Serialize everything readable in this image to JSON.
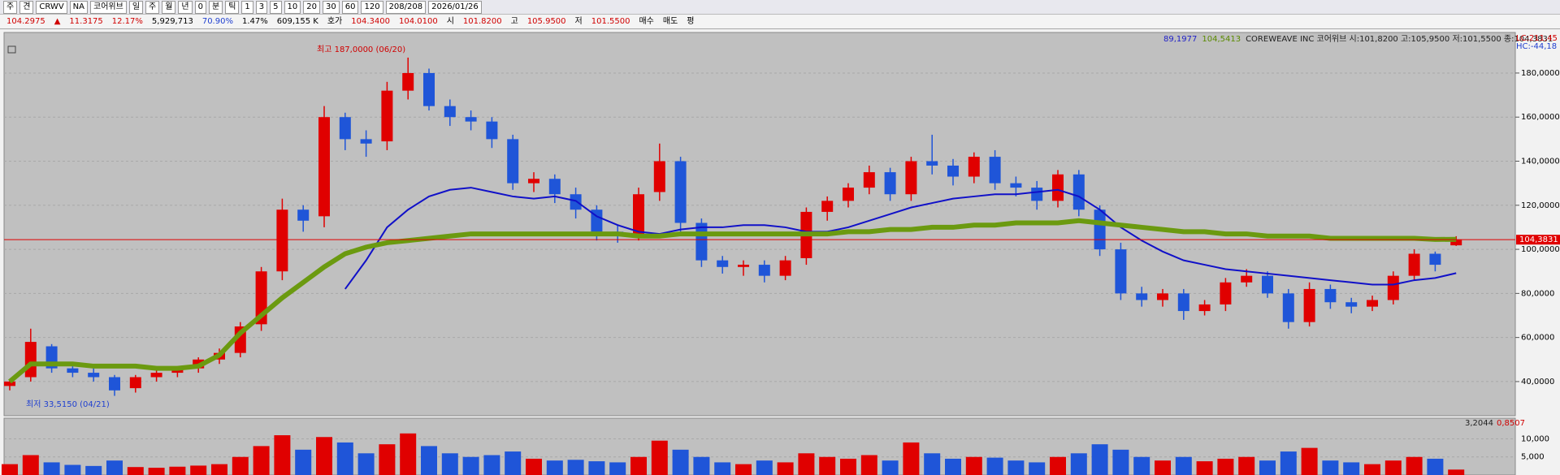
{
  "toolbar": {
    "row1": [
      {
        "text": "주"
      },
      {
        "text": "견"
      },
      {
        "text": "CRWV"
      },
      {
        "text": "NA"
      },
      {
        "text": "코어위브"
      },
      {
        "text": "일"
      },
      {
        "text": "주"
      },
      {
        "text": "월"
      },
      {
        "text": "년"
      },
      {
        "text": "0"
      },
      {
        "text": "분"
      },
      {
        "text": "틱"
      },
      {
        "text": "1"
      },
      {
        "text": "3"
      },
      {
        "text": "5"
      },
      {
        "text": "10"
      },
      {
        "text": "20"
      },
      {
        "text": "30"
      },
      {
        "text": "60"
      },
      {
        "text": "120"
      },
      {
        "text": "208/208"
      },
      {
        "text": "2026/01/26"
      }
    ],
    "row2": [
      {
        "text": "104.2975",
        "color": "#d00000"
      },
      {
        "text": "▲",
        "color": "#d00000"
      },
      {
        "text": "11.3175",
        "color": "#d00000"
      },
      {
        "text": "12.17%",
        "color": "#d00000"
      },
      {
        "text": "5,929,713",
        "color": "#000000"
      },
      {
        "text": "70.90%",
        "color": "#1f3fd0"
      },
      {
        "text": "1.47%",
        "color": "#000000"
      },
      {
        "text": "609,155 K",
        "color": "#000000"
      },
      {
        "text": "호가",
        "color": "#000000"
      },
      {
        "text": "104.3400",
        "color": "#d00000"
      },
      {
        "text": "104.0100",
        "color": "#d00000"
      },
      {
        "text": "시",
        "color": "#000000"
      },
      {
        "text": "101.8200",
        "color": "#d00000"
      },
      {
        "text": "고",
        "color": "#000000"
      },
      {
        "text": "105.9500",
        "color": "#d00000"
      },
      {
        "text": "저",
        "color": "#000000"
      },
      {
        "text": "101.5500",
        "color": "#d00000"
      },
      {
        "text": "매수",
        "color": "#000000"
      },
      {
        "text": "매도",
        "color": "#000000"
      },
      {
        "text": "평",
        "color": "#000000"
      }
    ]
  },
  "chart_data": [
    {
      "type": "candlestick",
      "legend": [
        {
          "text": "89,1977",
          "color": "#1f1fc8"
        },
        {
          "text": "104,5413",
          "color": "#5a8a00"
        },
        {
          "text": "COREWEAVE INC  코어위브  시:101,8200 고:105,9500 저:101,5500 종:104,3831",
          "color": "#222222"
        }
      ],
      "corner_labels": [
        {
          "text": "LC:211,45",
          "color": "#d00000"
        },
        {
          "text": "HC:-44,18",
          "color": "#1f3fd0"
        }
      ],
      "annotations": [
        {
          "text": "최고 187,0000 (06/20)",
          "color": "#d00000"
        },
        {
          "text": "최저 33,5150 (04/21)",
          "color": "#1f3fd0"
        }
      ],
      "colors": {
        "up": "#e00000",
        "down": "#1f55d8"
      },
      "open": [
        38,
        42,
        56,
        46,
        44,
        42,
        37,
        42,
        44,
        46,
        50,
        53,
        66,
        90,
        118,
        115,
        160,
        150,
        149,
        172,
        180,
        165,
        160,
        158,
        150,
        130,
        132,
        125,
        118,
        108,
        107,
        126,
        140,
        112,
        95,
        92,
        93,
        88,
        96,
        117,
        122,
        128,
        135,
        125,
        140,
        138,
        133,
        142,
        130,
        128,
        122,
        134,
        118,
        100,
        80,
        77,
        80,
        72,
        75,
        85,
        88,
        80,
        67,
        82,
        76,
        74,
        77,
        88,
        98,
        101.82
      ],
      "high": [
        41,
        64,
        57,
        48,
        46,
        43,
        43,
        45,
        47,
        51,
        55,
        67,
        92,
        123,
        120,
        165,
        162,
        154,
        176,
        187,
        182,
        168,
        163,
        160,
        152,
        135,
        134,
        128,
        120,
        111,
        128,
        148,
        142,
        114,
        97,
        95,
        95,
        97,
        119,
        124,
        130,
        138,
        137,
        142,
        152,
        141,
        144,
        145,
        133,
        131,
        136,
        136,
        120,
        103,
        83,
        82,
        82,
        77,
        87,
        91,
        90,
        82,
        85,
        84,
        78,
        79,
        90,
        100,
        99,
        105.95
      ],
      "low": [
        36,
        40,
        44,
        42,
        40,
        33.515,
        35,
        40,
        42,
        44,
        48,
        51,
        63,
        86,
        108,
        110,
        145,
        142,
        145,
        168,
        163,
        156,
        154,
        146,
        127,
        126,
        121,
        114,
        104,
        103,
        104,
        122,
        108,
        92,
        89,
        88,
        85,
        86,
        93,
        113,
        119,
        125,
        122,
        122,
        134,
        129,
        130,
        127,
        124,
        118,
        119,
        115,
        97,
        77,
        74,
        74,
        68,
        70,
        72,
        83,
        78,
        64,
        65,
        73,
        71,
        72,
        75,
        86,
        90,
        101.55
      ],
      "close": [
        40,
        58,
        46,
        44,
        42,
        36,
        42,
        44,
        46,
        50,
        53,
        65,
        90,
        118,
        113,
        160,
        150,
        148,
        172,
        180,
        165,
        160,
        158,
        150,
        130,
        132,
        125,
        118,
        108,
        107,
        125,
        140,
        112,
        95,
        92,
        93,
        88,
        95,
        117,
        122,
        128,
        135,
        125,
        140,
        138,
        133,
        142,
        130,
        128,
        122,
        134,
        118,
        100,
        80,
        77,
        80,
        72,
        75,
        85,
        88,
        80,
        67,
        82,
        76,
        74,
        77,
        88,
        98,
        93,
        104.3831
      ],
      "lines": [
        {
          "color": "#1010c8",
          "width": 2,
          "values": [
            null,
            null,
            null,
            null,
            null,
            null,
            null,
            null,
            null,
            null,
            null,
            null,
            null,
            null,
            null,
            null,
            82,
            95,
            110,
            118,
            124,
            127,
            128,
            126,
            124,
            123,
            124,
            122,
            115,
            111,
            108,
            107,
            109,
            110,
            110,
            111,
            111,
            110,
            108,
            108,
            110,
            113,
            116,
            119,
            121,
            123,
            124,
            125,
            125,
            126,
            127,
            124,
            118,
            110,
            104,
            99,
            95,
            93,
            91,
            90,
            89,
            88,
            87,
            86,
            85,
            84,
            84,
            86,
            87,
            89.1977
          ]
        },
        {
          "color": "#6b9a10",
          "width": 6,
          "values": [
            40,
            48,
            48,
            48,
            47,
            47,
            47,
            46,
            46,
            47,
            52,
            62,
            70,
            78,
            85,
            92,
            98,
            101,
            103,
            104,
            105,
            106,
            107,
            107,
            107,
            107,
            107,
            107,
            107,
            107,
            106,
            106,
            107,
            107,
            107,
            107,
            107,
            107,
            107,
            107,
            108,
            108,
            109,
            109,
            110,
            110,
            111,
            111,
            112,
            112,
            112,
            113,
            112,
            111,
            110,
            109,
            108,
            108,
            107,
            107,
            106,
            106,
            106,
            105,
            105,
            105,
            105,
            105,
            104.5,
            104.5413
          ]
        }
      ],
      "price_line": {
        "value": 104.3831,
        "label": "104,3831",
        "color": "#e00000"
      },
      "ylim": [
        24.5,
        198.4
      ],
      "yticks": [
        {
          "value": 40,
          "label": "40,0000"
        },
        {
          "value": 60,
          "label": "60,0000"
        },
        {
          "value": 80,
          "label": "80,0000"
        },
        {
          "value": 100,
          "label": "100,0000"
        },
        {
          "value": 120,
          "label": "120,0000"
        },
        {
          "value": 140,
          "label": "140,0000"
        },
        {
          "value": 160,
          "label": "160,0000"
        },
        {
          "value": 180,
          "label": "180,0000"
        }
      ],
      "grid": true
    },
    {
      "type": "bar",
      "legend": [
        {
          "text": "3,2044",
          "color": "#222222"
        },
        {
          "text": "0,8507",
          "color": "#d00000"
        }
      ],
      "values": [
        3000,
        5500,
        3500,
        2800,
        2500,
        4000,
        2200,
        2000,
        2300,
        2600,
        3000,
        5000,
        8000,
        11000,
        7000,
        10500,
        9000,
        6000,
        8500,
        11500,
        8000,
        6000,
        5000,
        5500,
        6500,
        4500,
        4000,
        4200,
        3800,
        3500,
        5000,
        9500,
        7000,
        5000,
        3500,
        3000,
        4000,
        3500,
        6000,
        5000,
        4500,
        5500,
        4000,
        9000,
        6000,
        4500,
        5000,
        4800,
        4000,
        3500,
        5000,
        6000,
        8500,
        7000,
        5000,
        4000,
        5000,
        3800,
        4500,
        5000,
        4000,
        6500,
        7500,
        4000,
        3500,
        3000,
        4000,
        5000,
        4500,
        1500
      ],
      "ylim": [
        0,
        14600
      ],
      "yticks": [
        {
          "value": 5000,
          "label": "5,000"
        },
        {
          "value": 10000,
          "label": "10,000"
        }
      ],
      "grid": true
    }
  ]
}
